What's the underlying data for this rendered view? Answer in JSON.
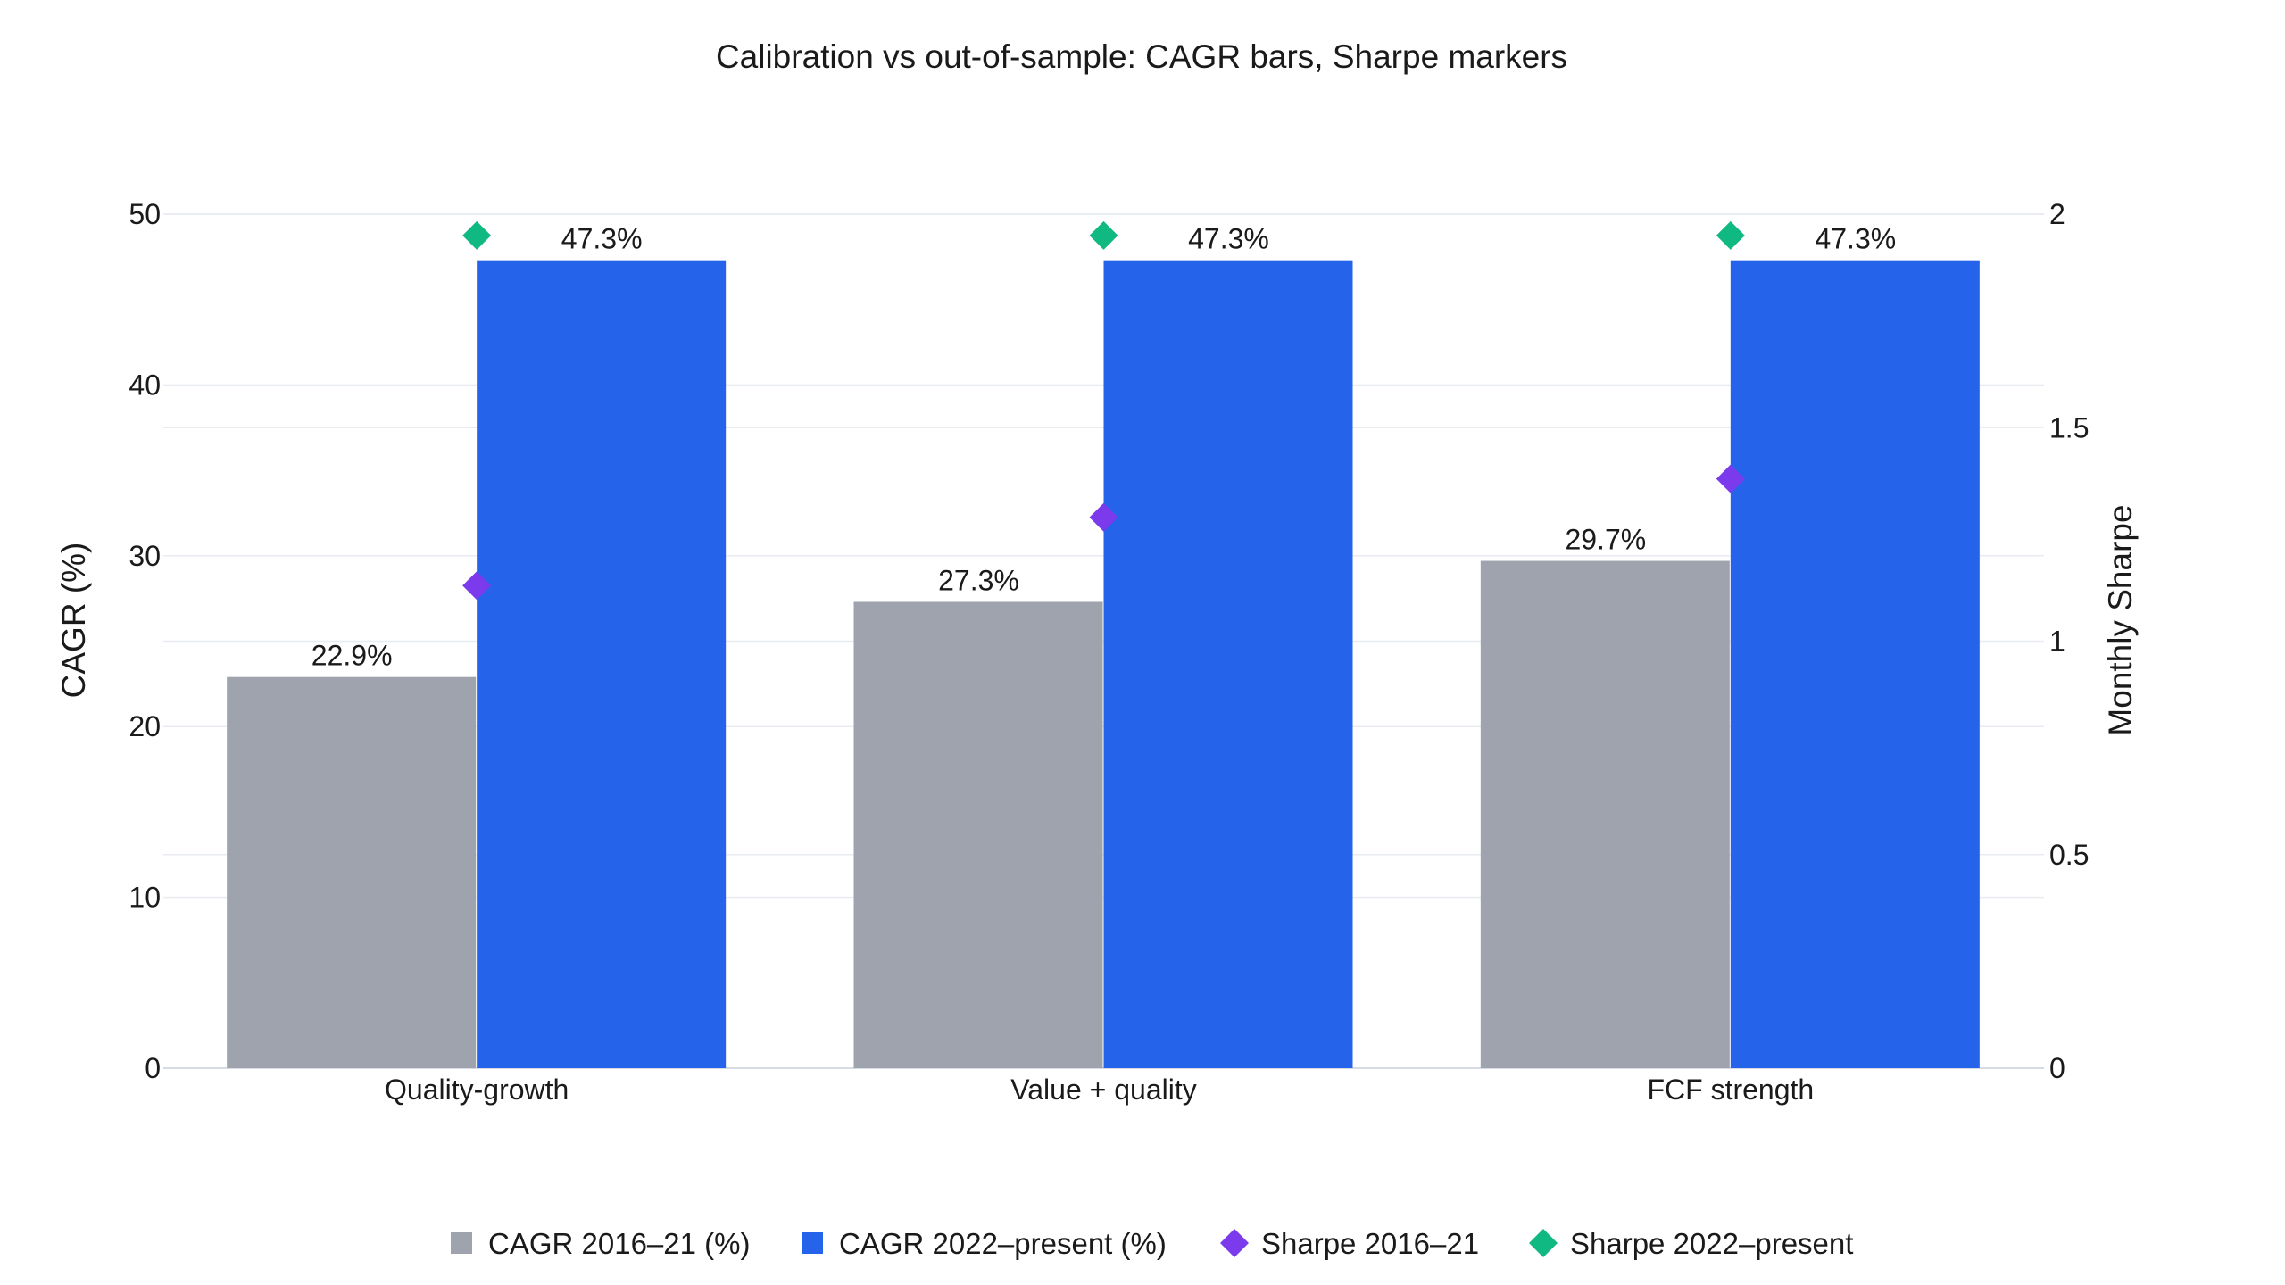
{
  "chart_data": {
    "type": "bar",
    "title": "Calibration vs out-of-sample: CAGR bars, Sharpe markers",
    "categories": [
      "Quality-growth",
      "Value + quality",
      "FCF strength"
    ],
    "ylabel": "CAGR (%)",
    "y2label": "Monthly Sharpe",
    "ylim": [
      0,
      50
    ],
    "y2lim": [
      0,
      2
    ],
    "yticks": [
      "0",
      "10",
      "20",
      "30",
      "40",
      "50"
    ],
    "y2ticks": [
      "0",
      "0.5",
      "1",
      "1.5",
      "2"
    ],
    "grid": true,
    "legend_position": "bottom",
    "series": [
      {
        "name": "CAGR 2016–21 (%)",
        "kind": "bar",
        "axis": "left",
        "color": "#9ea3ae",
        "values": [
          22.9,
          27.3,
          29.7
        ],
        "labels": [
          "22.9%",
          "27.3%",
          "29.7%"
        ]
      },
      {
        "name": "CAGR 2022–present (%)",
        "kind": "bar",
        "axis": "left",
        "color": "#2563eb",
        "values": [
          47.3,
          47.3,
          47.3
        ],
        "labels": [
          "47.3%",
          "47.3%",
          "47.3%"
        ]
      },
      {
        "name": "Sharpe 2016–21",
        "kind": "marker",
        "axis": "right",
        "color": "#7c3aed",
        "values": [
          1.13,
          1.29,
          1.38
        ]
      },
      {
        "name": "Sharpe 2022–present",
        "kind": "marker",
        "axis": "right",
        "color": "#10b981",
        "values": [
          1.95,
          1.95,
          1.95
        ]
      }
    ]
  }
}
